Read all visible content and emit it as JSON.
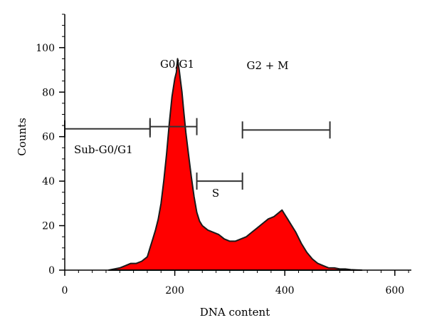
{
  "chart_data": {
    "type": "area",
    "title": "",
    "xlabel": "DNA content",
    "ylabel": "Counts",
    "xlim": [
      0,
      630
    ],
    "ylim": [
      0,
      115
    ],
    "xticks": [
      0,
      200,
      400,
      600
    ],
    "yticks": [
      0,
      20,
      40,
      60,
      80,
      100
    ],
    "grid": false,
    "fill_color": "#ff0000",
    "outline_color": "#1a1a1a",
    "series": [
      {
        "x": [
          80,
          100,
          110,
          120,
          130,
          140,
          150,
          155,
          160,
          165,
          170,
          175,
          180,
          185,
          190,
          195,
          200,
          203,
          205,
          208,
          210,
          213,
          216,
          220,
          225,
          230,
          235,
          240,
          245,
          250,
          255,
          260,
          270,
          280,
          290,
          300,
          310,
          320,
          330,
          340,
          350,
          360,
          370,
          380,
          390,
          395,
          400,
          405,
          410,
          420,
          430,
          440,
          450,
          460,
          470,
          480,
          490,
          500,
          510,
          520,
          530,
          540
        ],
        "y": [
          0,
          1,
          2,
          3,
          3,
          4,
          6,
          10,
          14,
          18,
          23,
          30,
          40,
          52,
          66,
          78,
          86,
          89,
          95,
          90,
          86,
          80,
          72,
          62,
          52,
          42,
          33,
          26,
          22,
          20,
          19,
          18,
          17,
          16,
          14,
          13,
          13,
          14,
          15,
          17,
          19,
          21,
          23,
          24,
          26,
          27,
          25,
          23,
          21,
          17,
          12,
          8,
          5,
          3,
          2,
          1,
          1,
          0.5,
          0.5,
          0.2,
          0.1,
          0
        ]
      }
    ],
    "gates": [
      {
        "label": "Sub-G0/G1",
        "x0": 0,
        "x1": 155,
        "y": 63.5
      },
      {
        "label": "G0/G1",
        "x0": 155,
        "x1": 240,
        "y": 64.5
      },
      {
        "label": "S",
        "x0": 240,
        "x1": 323,
        "y": 40
      },
      {
        "label": "G2 + M",
        "x0": 323,
        "x1": 482,
        "y": 63
      }
    ]
  }
}
